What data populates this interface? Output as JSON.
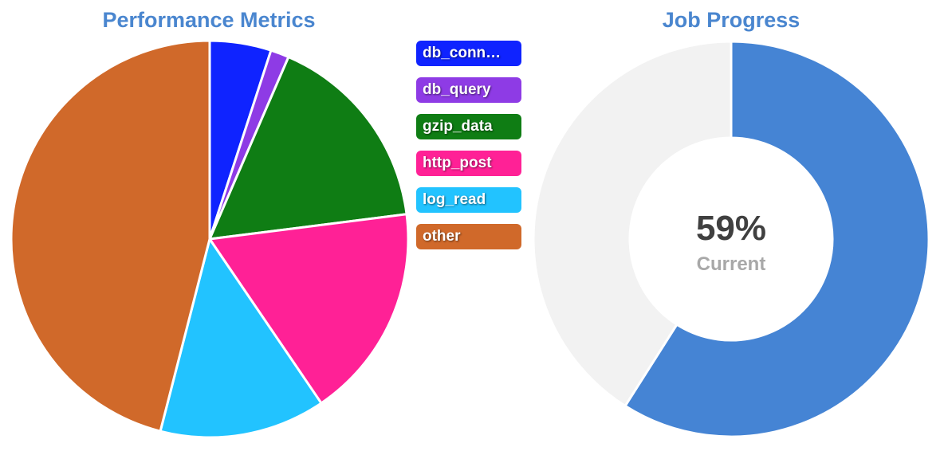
{
  "title_color": "#4a86cf",
  "chart_data": [
    {
      "type": "pie",
      "title": "Performance Metrics",
      "categories": [
        "db_connect",
        "db_query",
        "gzip_data",
        "http_post",
        "log_read",
        "other"
      ],
      "legend_labels": [
        "db_conn…",
        "db_query",
        "gzip_data",
        "http_post",
        "log_read",
        "other"
      ],
      "values": [
        5,
        1.5,
        16.5,
        17.5,
        13.5,
        46
      ],
      "colors": [
        "#0f23ff",
        "#8e3be5",
        "#0f7d14",
        "#ff2196",
        "#22c3ff",
        "#d0692a"
      ],
      "legend_position": "right"
    },
    {
      "type": "gauge",
      "title": "Job Progress",
      "value": 59,
      "value_text": "59%",
      "label": "Current",
      "fill_color": "#4584d4",
      "track_color": "#f2f2f2"
    }
  ]
}
